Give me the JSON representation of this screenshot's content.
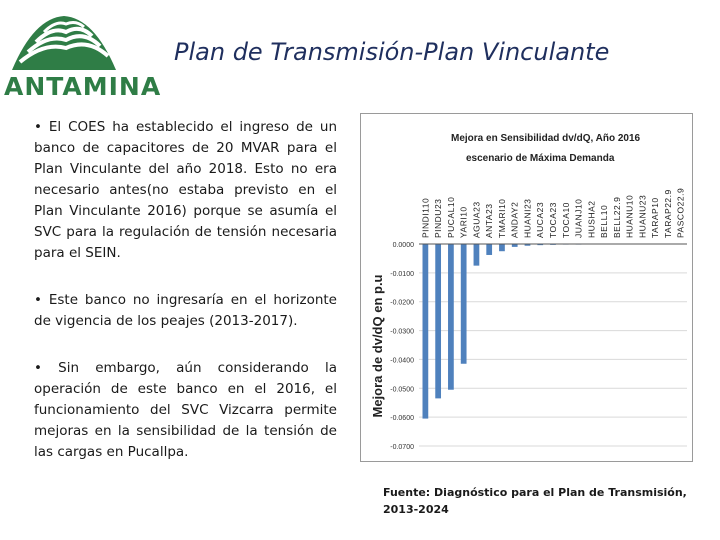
{
  "header": {
    "logo_text": "ANTAMINA",
    "title": "Plan de Transmisión-Plan Vinculante"
  },
  "bullets": [
    "• El COES ha establecido el ingreso de un banco de capacitores de 20 MVAR para el Plan Vinculante del año 2018. Esto no era necesario antes(no estaba previsto en el Plan Vinculante 2016) porque se asumía el SVC para la regulación de tensión necesaria para el SEIN.",
    "• Este banco no ingresaría en el horizonte de vigencia de los peajes (2013-2017).",
    "• Sin embargo,   aún considerando la operación de este banco en el 2016, el funcionamiento del SVC Vizcarra permite mejoras  en la sensibilidad de la tensión de las cargas en Pucallpa."
  ],
  "source": "Fuente: Diagnóstico para el Plan de Transmisión, 2013-2024",
  "colors": {
    "bar": "#4f81bd",
    "title": "#1f2f5e",
    "logo": "#2f7d46"
  },
  "chart_data": {
    "type": "bar",
    "title": "Mejora en Sensibilidad dv/dQ, Año 2016",
    "subtitle": "escenario de Máxima Demanda",
    "ylabel": "Mejora de dv/dQ en p.u",
    "xlabel": "",
    "ylim": [
      -0.07,
      0
    ],
    "yticks": [
      0,
      -0.01,
      -0.02,
      -0.03,
      -0.04,
      -0.05,
      -0.06,
      -0.07
    ],
    "ytick_labels": [
      "0.0000",
      "-0.0100",
      "-0.0200",
      "-0.0300",
      "-0.0400",
      "-0.0500",
      "-0.0600",
      "-0.0700"
    ],
    "categories": [
      "PINDI110",
      "PINDU23",
      "PUCAL10",
      "YARI10",
      "AGUA23",
      "ANTA23",
      "TMARI10",
      "ANDAY2",
      "HUANI23",
      "AUCA23",
      "TOCA23",
      "TOCA10",
      "JUANJ10",
      "HUSHA2",
      "BELL10",
      "BELL22.9",
      "HUANU10",
      "HUANU23",
      "TARAP10",
      "TARAP22.9",
      "PASCO22.9"
    ],
    "values": [
      -0.0605,
      -0.0535,
      -0.0505,
      -0.0415,
      -0.0075,
      -0.0038,
      -0.0025,
      -0.001,
      -0.0006,
      -0.0004,
      -0.0003,
      -0.0002,
      -0.0002,
      -0.0001,
      -0.0001,
      -0.0001,
      0,
      0,
      0,
      0,
      0
    ]
  }
}
